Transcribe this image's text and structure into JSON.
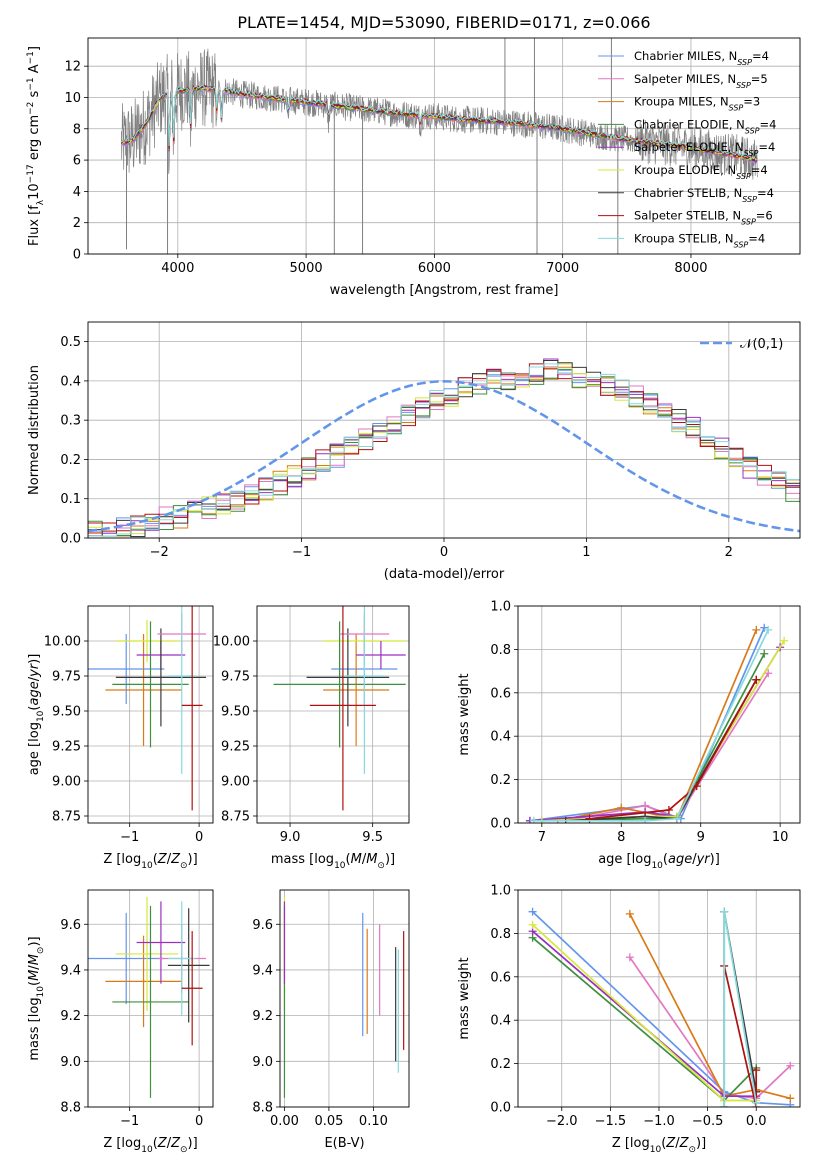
{
  "figure": {
    "suptitle": "PLATE=1454, MJD=53090, FIBERID=0171, z=0.066"
  },
  "chart_data": [
    {
      "id": "spectrum",
      "type": "line",
      "title": "PLATE=1454, MJD=53090, FIBERID=0171, z=0.066",
      "xlabel": "wavelength [Angstrom, rest frame]",
      "ylabel": "Flux [f_λ 10^-17 erg cm^-2 s^-1 A^-1]",
      "xlim": [
        3300,
        8850
      ],
      "ylim": [
        0,
        13.8
      ],
      "xticks": [
        4000,
        5000,
        6000,
        7000,
        8000
      ],
      "yticks": [
        0,
        2,
        4,
        6,
        8,
        10,
        12
      ],
      "legend_loc": "upper right",
      "legend": [
        {
          "label": "Chabrier MILES, N_SSP=4",
          "color": "#6495ED"
        },
        {
          "label": "Salpeter MILES, N_SSP=5",
          "color": "#E377C2"
        },
        {
          "label": "Kroupa MILES, N_SSP=3",
          "color": "#D97A18"
        },
        {
          "label": "Chabrier ELODIE, N_SSP=4",
          "color": "#3F8F3F"
        },
        {
          "label": "Salpeter ELODIE, N_SSP=4",
          "color": "#9B30C0"
        },
        {
          "label": "Kroupa ELODIE, N_SSP=4",
          "color": "#D5E83A"
        },
        {
          "label": "Chabrier STELIB, N_SSP=4",
          "color": "#3A3A3A"
        },
        {
          "label": "Salpeter STELIB, N_SSP=6",
          "color": "#B01010"
        },
        {
          "label": "Kroupa STELIB, N_SSP=4",
          "color": "#86DADC"
        }
      ],
      "data_color": "#808080",
      "continuum": {
        "x": [
          3550,
          3650,
          3700,
          3750,
          3800,
          3850,
          3900,
          3950,
          4000,
          4100,
          4200,
          4300,
          4400,
          4500,
          4600,
          4800,
          5000,
          5200,
          5400,
          5600,
          5800,
          6000,
          6200,
          6400,
          6600,
          6800,
          7000,
          7200,
          7400,
          7600,
          7800,
          8000,
          8200,
          8400,
          8500
        ],
        "y": [
          7.0,
          7.3,
          7.8,
          8.3,
          9.0,
          9.8,
          10.2,
          10.3,
          10.4,
          10.5,
          10.6,
          10.5,
          10.4,
          10.2,
          10.1,
          9.9,
          9.7,
          9.5,
          9.3,
          9.1,
          8.9,
          8.8,
          8.6,
          8.5,
          8.4,
          8.2,
          8.0,
          7.7,
          7.4,
          7.2,
          7.0,
          6.8,
          6.5,
          6.2,
          6.0
        ]
      },
      "absorption_lines": [
        {
          "x": 3934,
          "depth": 3.8
        },
        {
          "x": 3969,
          "depth": 3.2
        },
        {
          "x": 4101,
          "depth": 2.4
        },
        {
          "x": 4304,
          "depth": 1.4
        },
        {
          "x": 4340,
          "depth": 1.8
        },
        {
          "x": 4861,
          "depth": 1.0
        },
        {
          "x": 5175,
          "depth": 1.1
        },
        {
          "x": 5890,
          "depth": 0.6
        }
      ],
      "data_spikes": [
        {
          "x": 3600,
          "y": 0.3
        },
        {
          "x": 3920,
          "y": 0.0
        },
        {
          "x": 5220,
          "y": 0.0
        },
        {
          "x": 5440,
          "y": 0.0
        },
        {
          "x": 6550,
          "y": 13.8
        },
        {
          "x": 6780,
          "y": 13.8
        },
        {
          "x": 6800,
          "y": 0.0
        },
        {
          "x": 7380,
          "y": 13.8
        },
        {
          "x": 7430,
          "y": 0.0
        }
      ]
    },
    {
      "id": "residual_histogram",
      "type": "histogram",
      "xlabel": "(data-model)/error",
      "ylabel": "Normed distribution",
      "xlim": [
        -2.5,
        2.5
      ],
      "ylim": [
        0,
        0.55
      ],
      "xticks": [
        -2,
        -1,
        0,
        1,
        2
      ],
      "yticks": [
        0.0,
        0.1,
        0.2,
        0.3,
        0.4,
        0.5
      ],
      "legend_loc": "upper right",
      "normal_curve": {
        "label": "𝒩(0,1)",
        "color": "#6495ED",
        "mean": 0,
        "sigma": 1
      },
      "bin_edges_start": -2.5,
      "bin_width": 0.1,
      "base_heights": [
        0.015,
        0.02,
        0.025,
        0.03,
        0.04,
        0.05,
        0.055,
        0.065,
        0.075,
        0.085,
        0.095,
        0.11,
        0.125,
        0.14,
        0.155,
        0.175,
        0.195,
        0.21,
        0.23,
        0.25,
        0.27,
        0.29,
        0.31,
        0.33,
        0.35,
        0.365,
        0.38,
        0.39,
        0.4,
        0.405,
        0.41,
        0.42,
        0.43,
        0.42,
        0.41,
        0.4,
        0.39,
        0.38,
        0.36,
        0.34,
        0.32,
        0.3,
        0.28,
        0.25,
        0.23,
        0.2,
        0.18,
        0.16,
        0.14,
        0.12,
        0.1
      ],
      "series_colors": [
        "#6495ED",
        "#E377C2",
        "#D97A18",
        "#3F8F3F",
        "#9B30C0",
        "#D5E83A",
        "#3A3A3A",
        "#B01010",
        "#86DADC"
      ]
    },
    {
      "id": "age_vs_Z",
      "type": "errorbar",
      "xlabel": "Z [log10(Z/Z⊙)]",
      "ylabel": "age  [log10(age/yr)]",
      "xlim": [
        -1.6,
        0.2
      ],
      "ylim": [
        8.7,
        10.25
      ],
      "xticks": [
        -1,
        0
      ],
      "yticks": [
        8.75,
        9.0,
        9.25,
        9.5,
        9.75,
        10.0
      ],
      "points": [
        {
          "x": -1.05,
          "y": 9.8,
          "xerr": 0.55,
          "yerr": 0.25,
          "color": "#6495ED"
        },
        {
          "x": -0.8,
          "y": 9.65,
          "xerr": 0.55,
          "yerr": 0.4,
          "color": "#D97A18"
        },
        {
          "x": -0.75,
          "y": 10.0,
          "xerr": 0.45,
          "yerr": 0.15,
          "color": "#D5E83A"
        },
        {
          "x": -0.7,
          "y": 9.69,
          "xerr": 0.55,
          "yerr": 0.45,
          "color": "#3F8F3F"
        },
        {
          "x": -0.55,
          "y": 9.9,
          "xerr": 0.35,
          "yerr": 0.1,
          "color": "#9B30C0"
        },
        {
          "x": -0.55,
          "y": 9.74,
          "xerr": 0.65,
          "yerr": 0.35,
          "color": "#3A3A3A"
        },
        {
          "x": -0.25,
          "y": 10.05,
          "xerr": 0.35,
          "yerr": 0.15,
          "color": "#E377C2"
        },
        {
          "x": -0.25,
          "y": 9.75,
          "xerr": 0.2,
          "yerr": 0.7,
          "color": "#86DADC"
        },
        {
          "x": -0.1,
          "y": 9.54,
          "xerr": 0.15,
          "yerr": 0.75,
          "color": "#B01010"
        }
      ]
    },
    {
      "id": "age_vs_mass",
      "type": "errorbar",
      "xlabel": "mass [log10(M/M⊙)]",
      "ylabel": "",
      "xlim": [
        8.8,
        9.72
      ],
      "ylim": [
        8.7,
        10.25
      ],
      "xticks": [
        9.0,
        9.5
      ],
      "yticks": [
        8.75,
        9.0,
        9.25,
        9.5,
        9.75,
        10.0
      ],
      "points": [
        {
          "x": 9.45,
          "y": 9.8,
          "xerr": 0.2,
          "yerr": 0.25,
          "color": "#6495ED"
        },
        {
          "x": 9.4,
          "y": 9.65,
          "xerr": 0.2,
          "yerr": 0.4,
          "color": "#D97A18"
        },
        {
          "x": 9.45,
          "y": 10.0,
          "xerr": 0.25,
          "yerr": 0.15,
          "color": "#D5E83A"
        },
        {
          "x": 9.3,
          "y": 9.69,
          "xerr": 0.4,
          "yerr": 0.45,
          "color": "#3F8F3F"
        },
        {
          "x": 9.55,
          "y": 9.9,
          "xerr": 0.15,
          "yerr": 0.1,
          "color": "#9B30C0"
        },
        {
          "x": 9.35,
          "y": 9.74,
          "xerr": 0.25,
          "yerr": 0.35,
          "color": "#3A3A3A"
        },
        {
          "x": 9.45,
          "y": 10.05,
          "xerr": 0.15,
          "yerr": 0.15,
          "color": "#E377C2"
        },
        {
          "x": 9.45,
          "y": 9.75,
          "xerr": 0.12,
          "yerr": 0.7,
          "color": "#86DADC"
        },
        {
          "x": 9.32,
          "y": 9.54,
          "xerr": 0.2,
          "yerr": 0.75,
          "color": "#B01010"
        }
      ]
    },
    {
      "id": "weight_vs_age",
      "type": "line",
      "xlabel": "age  [log10(age/yr)]",
      "ylabel": "mass weight",
      "xlim": [
        6.7,
        10.25
      ],
      "ylim": [
        0,
        1.0
      ],
      "xticks": [
        7,
        8,
        9,
        10
      ],
      "yticks": [
        0.0,
        0.2,
        0.4,
        0.6,
        0.8,
        1.0
      ],
      "series": [
        {
          "color": "#6495ED",
          "x": [
            6.85,
            8.3,
            8.75,
            9.8
          ],
          "y": [
            0.01,
            0.08,
            0.02,
            0.9
          ]
        },
        {
          "color": "#E377C2",
          "x": [
            7.3,
            8.3,
            8.7,
            9.85
          ],
          "y": [
            0.01,
            0.08,
            0.02,
            0.69
          ]
        },
        {
          "color": "#D97A18",
          "x": [
            7.2,
            8.0,
            8.7,
            9.7
          ],
          "y": [
            0.01,
            0.07,
            0.02,
            0.89
          ]
        },
        {
          "color": "#3F8F3F",
          "x": [
            7.0,
            8.3,
            8.7,
            9.8
          ],
          "y": [
            0.01,
            0.02,
            0.02,
            0.78
          ]
        },
        {
          "color": "#9B30C0",
          "x": [
            6.85,
            8.3,
            8.7,
            10.0
          ],
          "y": [
            0.01,
            0.05,
            0.03,
            0.81
          ]
        },
        {
          "color": "#D5E83A",
          "x": [
            7.0,
            8.3,
            8.7,
            10.05
          ],
          "y": [
            0.01,
            0.03,
            0.03,
            0.84
          ]
        },
        {
          "color": "#3A3A3A",
          "x": [
            7.3,
            8.3,
            8.7,
            9.7
          ],
          "y": [
            0.01,
            0.03,
            0.02,
            0.66
          ]
        },
        {
          "color": "#B01010",
          "x": [
            7.6,
            8.6,
            8.95,
            9.7
          ],
          "y": [
            0.02,
            0.06,
            0.17,
            0.66
          ]
        },
        {
          "color": "#86DADC",
          "x": [
            6.9,
            8.3,
            8.7,
            9.85
          ],
          "y": [
            0.01,
            0.01,
            0.02,
            0.89
          ]
        }
      ]
    },
    {
      "id": "mass_vs_Z",
      "type": "errorbar",
      "xlabel": "Z [log10(Z/Z⊙)]",
      "ylabel": "mass [log10(M/M⊙)]",
      "xlim": [
        -1.6,
        0.2
      ],
      "ylim": [
        8.8,
        9.75
      ],
      "xticks": [
        -1,
        0
      ],
      "yticks": [
        8.8,
        9.0,
        9.2,
        9.4,
        9.6
      ],
      "points": [
        {
          "x": -1.05,
          "y": 9.45,
          "xerr": 0.55,
          "yerr": 0.2,
          "color": "#6495ED"
        },
        {
          "x": -0.8,
          "y": 9.35,
          "xerr": 0.55,
          "yerr": 0.2,
          "color": "#D97A18"
        },
        {
          "x": -0.75,
          "y": 9.47,
          "xerr": 0.45,
          "yerr": 0.25,
          "color": "#D5E83A"
        },
        {
          "x": -0.7,
          "y": 9.26,
          "xerr": 0.55,
          "yerr": 0.42,
          "color": "#3F8F3F"
        },
        {
          "x": -0.55,
          "y": 9.52,
          "xerr": 0.35,
          "yerr": 0.18,
          "color": "#9B30C0"
        },
        {
          "x": -0.15,
          "y": 9.42,
          "xerr": 0.3,
          "yerr": 0.25,
          "color": "#3A3A3A"
        },
        {
          "x": -0.25,
          "y": 9.45,
          "xerr": 0.35,
          "yerr": 0.15,
          "color": "#E377C2"
        },
        {
          "x": -0.25,
          "y": 9.45,
          "xerr": 0.2,
          "yerr": 0.25,
          "color": "#86DADC"
        },
        {
          "x": -0.1,
          "y": 9.32,
          "xerr": 0.15,
          "yerr": 0.25,
          "color": "#B01010"
        }
      ]
    },
    {
      "id": "mass_vs_EBV",
      "type": "errorbar",
      "xlabel": "E(B-V)",
      "ylabel": "",
      "xlim": [
        -0.005,
        0.14
      ],
      "ylim": [
        8.8,
        9.75
      ],
      "xticks": [
        0.0,
        0.05,
        0.1
      ],
      "yticks": [
        8.8,
        9.0,
        9.2,
        9.4,
        9.6
      ],
      "points": [
        {
          "x": 0.0,
          "y": 9.47,
          "xerr": 0,
          "yerr": 0.25,
          "color": "#D5E83A"
        },
        {
          "x": 0.0,
          "y": 9.26,
          "xerr": 0,
          "yerr": 0.42,
          "color": "#3F8F3F"
        },
        {
          "x": 0.0,
          "y": 9.52,
          "xerr": 0,
          "yerr": 0.18,
          "color": "#9B30C0"
        },
        {
          "x": 0.088,
          "y": 9.38,
          "xerr": 0,
          "yerr": 0.27,
          "color": "#6495ED"
        },
        {
          "x": 0.093,
          "y": 9.35,
          "xerr": 0,
          "yerr": 0.23,
          "color": "#D97A18"
        },
        {
          "x": 0.107,
          "y": 9.4,
          "xerr": 0,
          "yerr": 0.2,
          "color": "#E377C2"
        },
        {
          "x": 0.125,
          "y": 9.25,
          "xerr": 0,
          "yerr": 0.25,
          "color": "#3A3A3A"
        },
        {
          "x": 0.128,
          "y": 9.22,
          "xerr": 0,
          "yerr": 0.27,
          "color": "#86DADC"
        },
        {
          "x": 0.134,
          "y": 9.31,
          "xerr": 0,
          "yerr": 0.26,
          "color": "#B01010"
        }
      ]
    },
    {
      "id": "weight_vs_Z",
      "type": "line",
      "xlabel": "Z [log10(Z/Z⊙)]",
      "ylabel": "mass weight",
      "xlim": [
        -2.45,
        0.45
      ],
      "ylim": [
        0,
        1.0
      ],
      "xticks": [
        -2.0,
        -1.5,
        -1.0,
        -0.5,
        0.0
      ],
      "yticks": [
        0.0,
        0.2,
        0.4,
        0.6,
        0.8,
        1.0
      ],
      "series": [
        {
          "color": "#6495ED",
          "x": [
            -2.3,
            -0.33,
            0.0,
            0.35
          ],
          "y": [
            0.9,
            0.07,
            0.02,
            0.01
          ]
        },
        {
          "color": "#E377C2",
          "x": [
            -1.3,
            -0.33,
            0.0,
            0.35
          ],
          "y": [
            0.69,
            0.06,
            0.04,
            0.19
          ]
        },
        {
          "color": "#D97A18",
          "x": [
            -1.3,
            -0.33,
            0.0,
            0.35
          ],
          "y": [
            0.89,
            0.05,
            0.08,
            0.04
          ]
        },
        {
          "color": "#3F8F3F",
          "x": [
            -2.3,
            -0.33,
            0.0
          ],
          "y": [
            0.78,
            0.03,
            0.18
          ]
        },
        {
          "color": "#9B30C0",
          "x": [
            -2.3,
            -0.33,
            0.0
          ],
          "y": [
            0.81,
            0.05,
            0.05
          ]
        },
        {
          "color": "#D5E83A",
          "x": [
            -2.3,
            -0.33,
            0.0
          ],
          "y": [
            0.84,
            0.03,
            0.03
          ]
        },
        {
          "color": "#3A3A3A",
          "x": [
            -0.33,
            -0.33,
            0.0
          ],
          "y": [
            0.0,
            0.9,
            0.07
          ]
        },
        {
          "color": "#B01010",
          "x": [
            -0.33,
            0.0,
            0.0
          ],
          "y": [
            0.65,
            0.0,
            0.17
          ]
        },
        {
          "color": "#86DADC",
          "x": [
            -0.33,
            -0.33,
            0.0
          ],
          "y": [
            0.0,
            0.9,
            0.02
          ]
        }
      ]
    }
  ]
}
